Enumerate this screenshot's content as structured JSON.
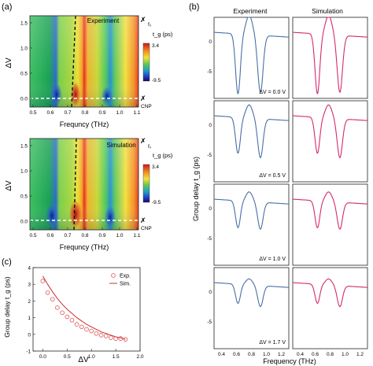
{
  "colors": {
    "experiment_line": "#4a6fa5",
    "simulation_line": "#d42a6e",
    "marker": "#e05050",
    "fit": "#c83030"
  },
  "panel_a": {
    "label": "(a)",
    "xlabel": "Frequncy (THz)",
    "ylabel": "ΔV",
    "x_ticks": [
      "0.5",
      "0.6",
      "0.7",
      "0.8",
      "0.9",
      "1.0",
      "1.1"
    ],
    "y_ticks": [
      "0.0",
      "0.5",
      "1.0",
      "1.5"
    ],
    "top": {
      "title": "Experiment",
      "fermi_label": "f₀",
      "cnp_label": "CNP",
      "colorbar_label": "t_g (ps)",
      "cb_max": "3.4",
      "cb_min": "-9.5"
    },
    "bottom": {
      "title": "Simulation",
      "fermi_label": "f₀",
      "cnp_label": "CNP",
      "colorbar_label": "t_g (ps)",
      "cb_max": "3.4",
      "cb_min": "-9.5"
    }
  },
  "panel_b": {
    "label": "(b)",
    "col_titles": [
      "Experiment",
      "Simulation"
    ],
    "ylabel": "Group delay t_g (ps)",
    "xlabel": "Frequency (THz)",
    "y_ticks": [
      "0",
      "-5"
    ],
    "x_ticks": [
      "0.4",
      "0.6",
      "0.8",
      "1.0",
      "1.2"
    ],
    "row_labels": [
      "ΔV = 0.0 V",
      "ΔV = 0.5 V",
      "ΔV = 1.0 V",
      "ΔV = 1.7 V"
    ]
  },
  "panel_c": {
    "label": "(c)"
  },
  "chart_data": {
    "type": "scatter",
    "xlabel": "ΔV",
    "ylabel": "Group delay t_g (ps)",
    "xlim": [
      -0.2,
      2.0
    ],
    "ylim": [
      -1,
      4
    ],
    "x_ticks": [
      "0.0",
      "0.5",
      "1.0",
      "1.5",
      "2.0"
    ],
    "y_ticks": [
      "-1",
      "0",
      "1",
      "2",
      "3",
      "4"
    ],
    "legend": "top-right",
    "series": [
      {
        "name": "Exp.",
        "kind": "markers",
        "x": [
          0.0,
          0.1,
          0.2,
          0.3,
          0.4,
          0.5,
          0.6,
          0.7,
          0.8,
          0.9,
          1.0,
          1.1,
          1.2,
          1.3,
          1.4,
          1.5,
          1.6,
          1.7
        ],
        "y": [
          3.2,
          2.5,
          2.1,
          1.6,
          1.3,
          1.05,
          0.85,
          0.6,
          0.45,
          0.3,
          0.2,
          0.05,
          -0.05,
          -0.1,
          -0.2,
          -0.25,
          -0.25,
          -0.3
        ]
      },
      {
        "name": "Sim.",
        "kind": "line",
        "x": [
          0.0,
          0.1,
          0.2,
          0.3,
          0.4,
          0.5,
          0.6,
          0.7,
          0.8,
          0.9,
          1.0,
          1.1,
          1.2,
          1.3,
          1.4,
          1.5,
          1.6,
          1.7
        ],
        "y": [
          3.5,
          3.0,
          2.55,
          2.15,
          1.8,
          1.5,
          1.25,
          1.0,
          0.8,
          0.6,
          0.45,
          0.3,
          0.15,
          0.05,
          -0.05,
          -0.15,
          -0.2,
          -0.3
        ]
      }
    ]
  }
}
